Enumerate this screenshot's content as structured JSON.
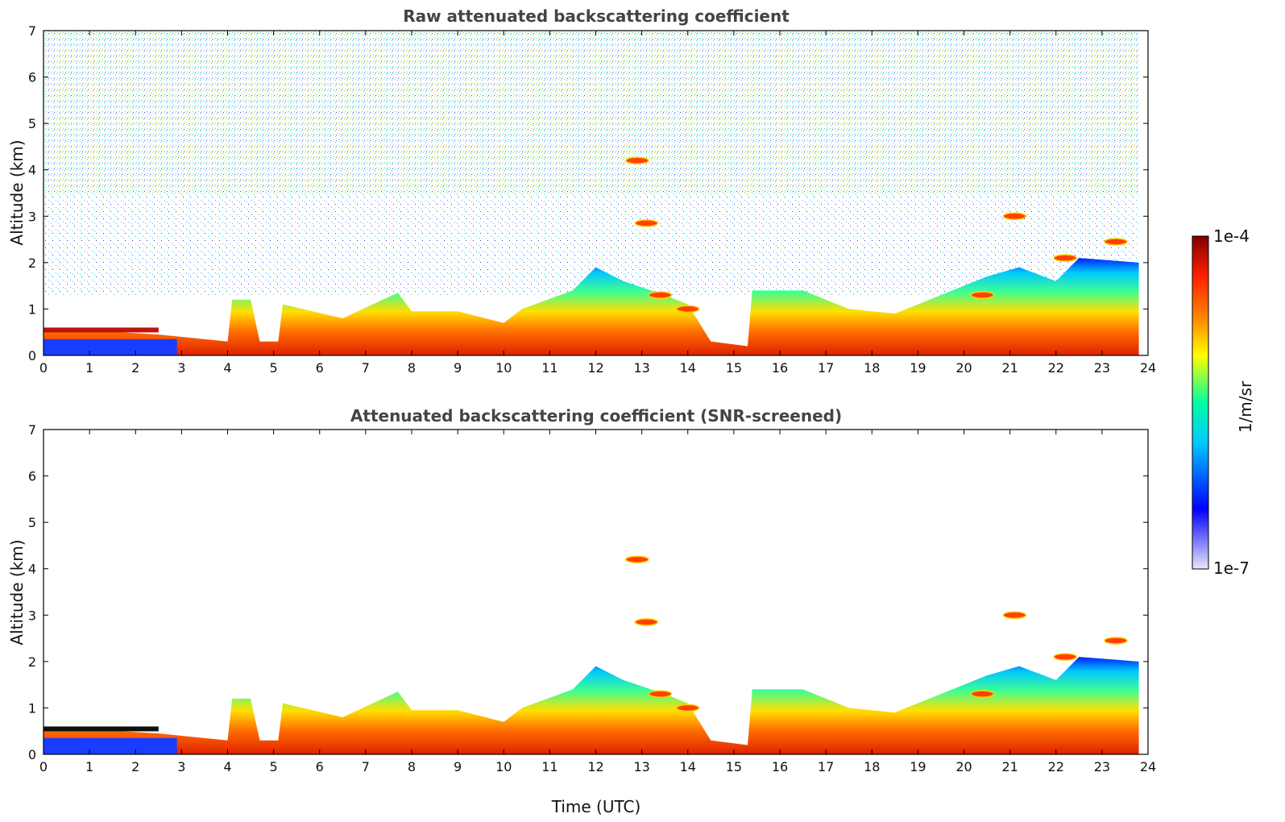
{
  "chart_data": [
    {
      "type": "heatmap",
      "title": "Raw attenuated backscattering coefficient",
      "xlabel": "",
      "ylabel": "Altitude (km)",
      "xlim": [
        0,
        24
      ],
      "ylim": [
        0,
        7
      ],
      "xticks": [
        "0",
        "1",
        "2",
        "3",
        "4",
        "5",
        "6",
        "7",
        "8",
        "9",
        "10",
        "11",
        "12",
        "13",
        "14",
        "15",
        "16",
        "17",
        "18",
        "19",
        "20",
        "21",
        "22",
        "23",
        "24"
      ],
      "yticks": [
        "0",
        "1",
        "2",
        "3",
        "4",
        "5",
        "6",
        "7"
      ],
      "data_end_time": 23.8,
      "boundary_layer_top_km": [
        [
          0,
          0.6
        ],
        [
          2.5,
          0.45
        ],
        [
          4.0,
          0.3
        ],
        [
          4.1,
          1.2
        ],
        [
          4.5,
          1.2
        ],
        [
          4.7,
          0.3
        ],
        [
          5.1,
          0.3
        ],
        [
          5.2,
          1.1
        ],
        [
          6.5,
          0.8
        ],
        [
          7.7,
          1.35
        ],
        [
          8.0,
          0.95
        ],
        [
          9.0,
          0.95
        ],
        [
          10.0,
          0.7
        ],
        [
          10.4,
          1.0
        ],
        [
          11.5,
          1.4
        ],
        [
          12.0,
          1.9
        ],
        [
          12.6,
          1.6
        ],
        [
          13.5,
          1.3
        ],
        [
          14.0,
          1.1
        ],
        [
          14.5,
          0.3
        ],
        [
          15.3,
          0.2
        ],
        [
          15.4,
          1.4
        ],
        [
          16.5,
          1.4
        ],
        [
          17.5,
          1.0
        ],
        [
          18.5,
          0.9
        ],
        [
          19.5,
          1.3
        ],
        [
          20.5,
          1.7
        ],
        [
          21.2,
          1.9
        ],
        [
          22.0,
          1.6
        ],
        [
          22.5,
          2.1
        ],
        [
          23.8,
          2.0
        ]
      ],
      "cloud_features": [
        {
          "time": 12.9,
          "altitude_km": 4.2
        },
        {
          "time": 13.1,
          "altitude_km": 2.85
        },
        {
          "time": 13.4,
          "altitude_km": 1.3
        },
        {
          "time": 14.0,
          "altitude_km": 1.0
        },
        {
          "time": 20.4,
          "altitude_km": 1.3
        },
        {
          "time": 21.1,
          "altitude_km": 3.0
        },
        {
          "time": 22.2,
          "altitude_km": 2.1
        },
        {
          "time": 23.3,
          "altitude_km": 2.45
        }
      ]
    },
    {
      "type": "heatmap",
      "title": "Attenuated backscattering coefficient (SNR-screened)",
      "xlabel": "Time (UTC)",
      "ylabel": "Altitude (km)",
      "xlim": [
        0,
        24
      ],
      "ylim": [
        0,
        7
      ],
      "xticks": [
        "0",
        "1",
        "2",
        "3",
        "4",
        "5",
        "6",
        "7",
        "8",
        "9",
        "10",
        "11",
        "12",
        "13",
        "14",
        "15",
        "16",
        "17",
        "18",
        "19",
        "20",
        "21",
        "22",
        "23",
        "24"
      ],
      "yticks": [
        "0",
        "1",
        "2",
        "3",
        "4",
        "5",
        "6",
        "7"
      ],
      "data_end_time": 23.8
    }
  ],
  "colorbar": {
    "label": "1/m/sr",
    "min_label": "1e-7",
    "max_label": "1e-4",
    "scale": "log",
    "colors": [
      "#e8e8f8",
      "#0000ff",
      "#00c8ff",
      "#00ffa0",
      "#ffff00",
      "#ff8000",
      "#ff2000",
      "#800000"
    ]
  }
}
